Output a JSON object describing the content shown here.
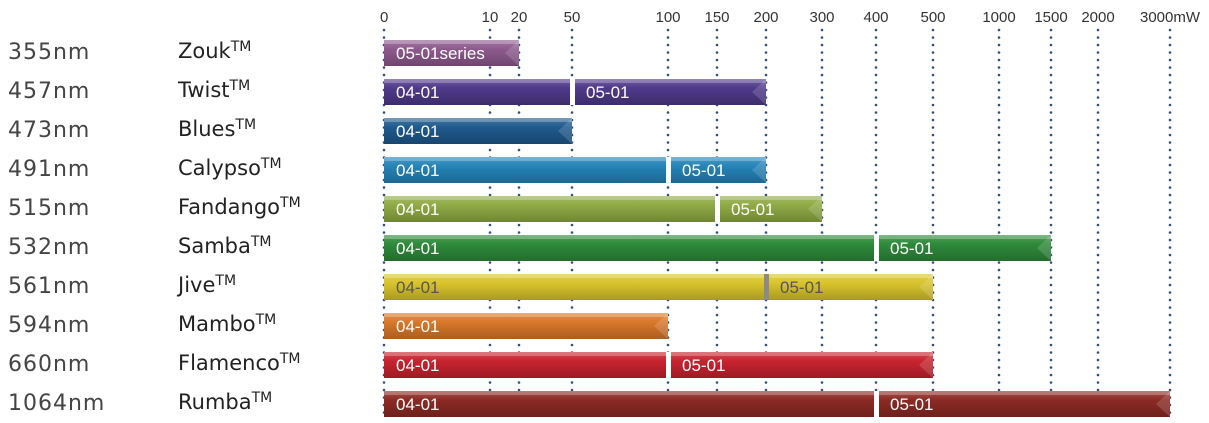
{
  "chart_data": {
    "type": "bar",
    "orientation": "horizontal",
    "x_unit": "mW",
    "x_ticks": [
      {
        "value": 0,
        "label": "0"
      },
      {
        "value": 10,
        "label": "10"
      },
      {
        "value": 20,
        "label": "20"
      },
      {
        "value": 50,
        "label": "50"
      },
      {
        "value": 100,
        "label": "100"
      },
      {
        "value": 150,
        "label": "150"
      },
      {
        "value": 200,
        "label": "200"
      },
      {
        "value": 300,
        "label": "300"
      },
      {
        "value": 400,
        "label": "400"
      },
      {
        "value": 500,
        "label": "500"
      },
      {
        "value": 1000,
        "label": "1000"
      },
      {
        "value": 1500,
        "label": "1500"
      },
      {
        "value": 2000,
        "label": "2000"
      },
      {
        "value": 3000,
        "label": "3000mW"
      }
    ],
    "grid": "dotted vertical lines at each tick",
    "rows": [
      {
        "wavelength": "355nm",
        "name": "Zouk",
        "tm": "TM",
        "color": "#8e5a8e",
        "max": 20,
        "segments": [
          {
            "label": "05-01series",
            "from": 0
          }
        ]
      },
      {
        "wavelength": "457nm",
        "name": "Twist",
        "tm": "TM",
        "color": "#4f3a8a",
        "max": 200,
        "segments": [
          {
            "label": "04-01",
            "from": 0
          },
          {
            "label": "05-01",
            "from": 50
          }
        ]
      },
      {
        "wavelength": "473nm",
        "name": "Blues",
        "tm": "TM",
        "color": "#1f5a8e",
        "max": 50,
        "segments": [
          {
            "label": "04-01",
            "from": 0
          }
        ]
      },
      {
        "wavelength": "491nm",
        "name": "Calypso",
        "tm": "TM",
        "color": "#2584b8",
        "max": 200,
        "segments": [
          {
            "label": "04-01",
            "from": 0
          },
          {
            "label": "05-01",
            "from": 100
          }
        ]
      },
      {
        "wavelength": "515nm",
        "name": "Fandango",
        "tm": "TM",
        "color": "#8fab45",
        "max": 300,
        "segments": [
          {
            "label": "04-01",
            "from": 0
          },
          {
            "label": "05-01",
            "from": 150
          }
        ]
      },
      {
        "wavelength": "532nm",
        "name": "Samba",
        "tm": "TM",
        "color": "#2e8a3a",
        "max": 1500,
        "segments": [
          {
            "label": "04-01",
            "from": 0
          },
          {
            "label": "05-01",
            "from": 400
          }
        ]
      },
      {
        "wavelength": "561nm",
        "name": "Jive",
        "tm": "TM",
        "color": "#d9c42c",
        "max": 500,
        "dark_text": true,
        "segments": [
          {
            "label": "04-01",
            "from": 0
          },
          {
            "label": "05-01",
            "from": 200
          }
        ]
      },
      {
        "wavelength": "594nm",
        "name": "Mambo",
        "tm": "TM",
        "color": "#d9782a",
        "max": 100,
        "segments": [
          {
            "label": "04-01",
            "from": 0
          }
        ]
      },
      {
        "wavelength": "660nm",
        "name": "Flamenco",
        "tm": "TM",
        "color": "#c8232f",
        "max": 500,
        "segments": [
          {
            "label": "04-01",
            "from": 0
          },
          {
            "label": "05-01",
            "from": 100
          }
        ]
      },
      {
        "wavelength": "1064nm",
        "name": "Rumba",
        "tm": "TM",
        "color": "#8c2a24",
        "max": 3000,
        "segments": [
          {
            "label": "04-01",
            "from": 0
          },
          {
            "label": "05-01",
            "from": 400
          }
        ]
      }
    ]
  }
}
